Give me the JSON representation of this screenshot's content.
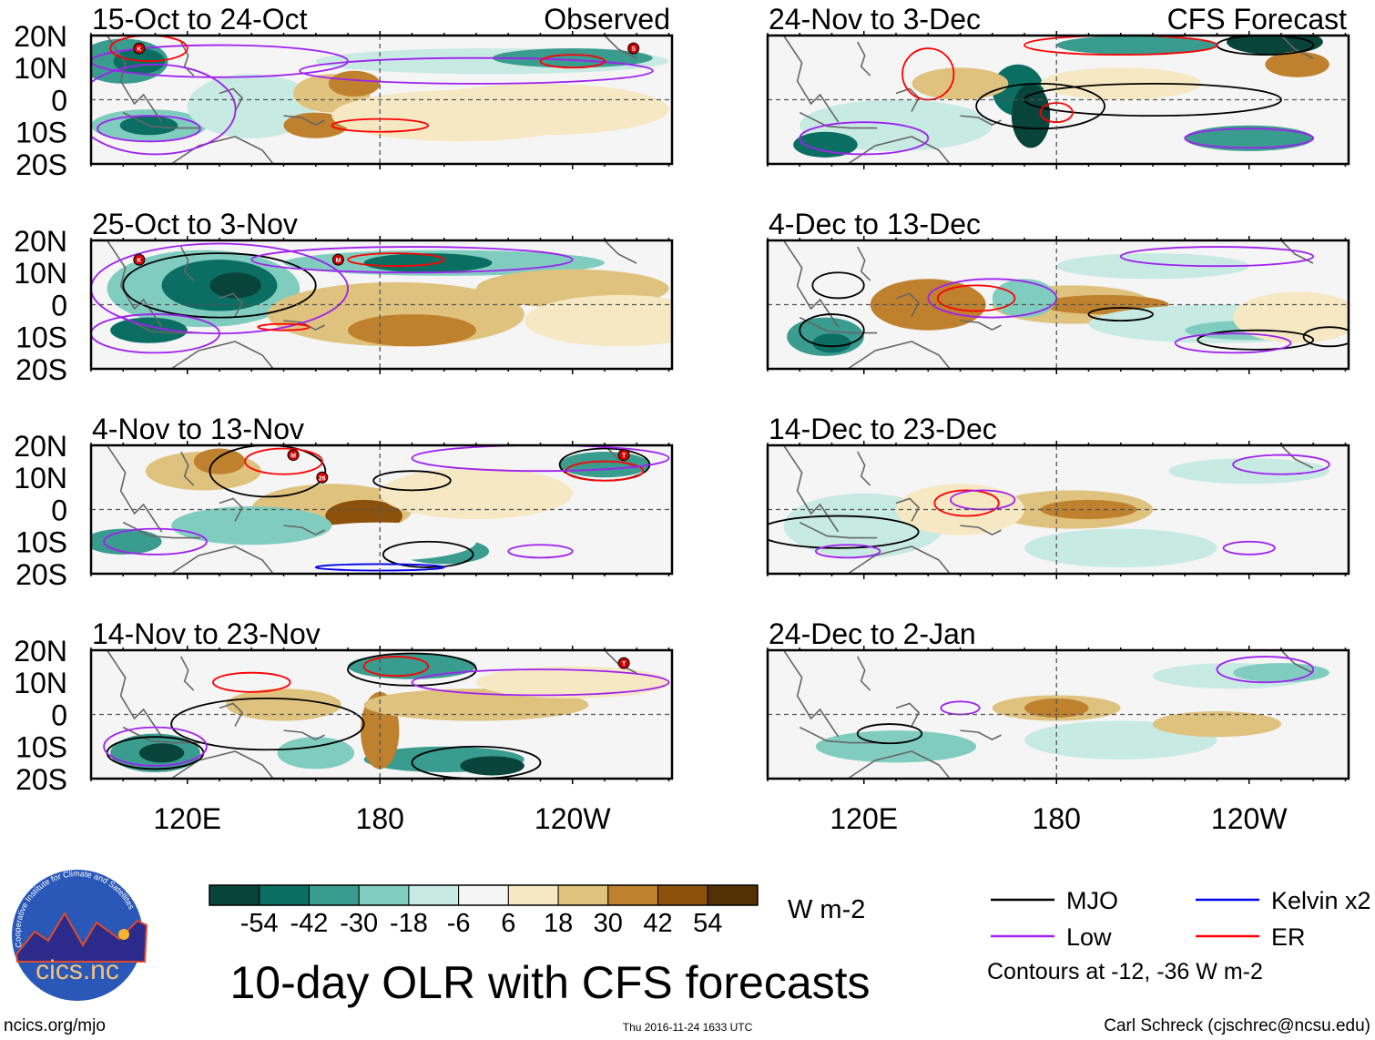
{
  "chart_data": {
    "type": "heatmap",
    "title": "10-day OLR with CFS forecasts",
    "units": "W m-2",
    "lat_ticks": [
      "20N",
      "10N",
      "0",
      "10S",
      "20S"
    ],
    "lon_ticks": [
      "120E",
      "180",
      "120W"
    ],
    "colorbar": {
      "labels": [
        "-54",
        "-42",
        "-30",
        "-18",
        "-6",
        "6",
        "18",
        "30",
        "42",
        "54"
      ],
      "colors": [
        "#08443a",
        "#0b6e63",
        "#3a9b8f",
        "#80cdc0",
        "#c7eae3",
        "#f5f5f5",
        "#f6e8c3",
        "#dfc27d",
        "#bf812d",
        "#8c510a",
        "#543005"
      ]
    },
    "panels_observed": [
      {
        "title": "15-Oct to 24-Oct",
        "tag": "Observed",
        "storms": [
          "K",
          "S"
        ]
      },
      {
        "title": "25-Oct to 3-Nov",
        "tag": "",
        "storms": [
          "K",
          "M"
        ]
      },
      {
        "title": "4-Nov to 13-Nov",
        "tag": "",
        "storms": [
          "M",
          "26",
          "T"
        ]
      },
      {
        "title": "14-Nov to 23-Nov",
        "tag": "",
        "storms": [
          "T"
        ]
      }
    ],
    "panels_forecast": [
      {
        "title": "24-Nov to 3-Dec",
        "tag": "CFS Forecast"
      },
      {
        "title": "4-Dec to 13-Dec",
        "tag": ""
      },
      {
        "title": "14-Dec to 23-Dec",
        "tag": ""
      },
      {
        "title": "24-Dec to 2-Jan",
        "tag": ""
      }
    ],
    "legend": {
      "items": [
        {
          "label": "MJO",
          "color": "#000000"
        },
        {
          "label": "Kelvin x2",
          "color": "#0000ee"
        },
        {
          "label": "Low",
          "color": "#a020f0"
        },
        {
          "label": "ER",
          "color": "#ff0000"
        }
      ],
      "note": "Contours at -12, -36 W m-2"
    }
  },
  "footer": {
    "logo_text": "cics.nc",
    "logo_ring": "Cooperative Institute for Climate and Satellites",
    "left": "ncics.org/mjo",
    "center": "Thu 2016-11-24 1633 UTC",
    "right": "Carl Schreck (cjschrec@ncsu.edu)"
  }
}
